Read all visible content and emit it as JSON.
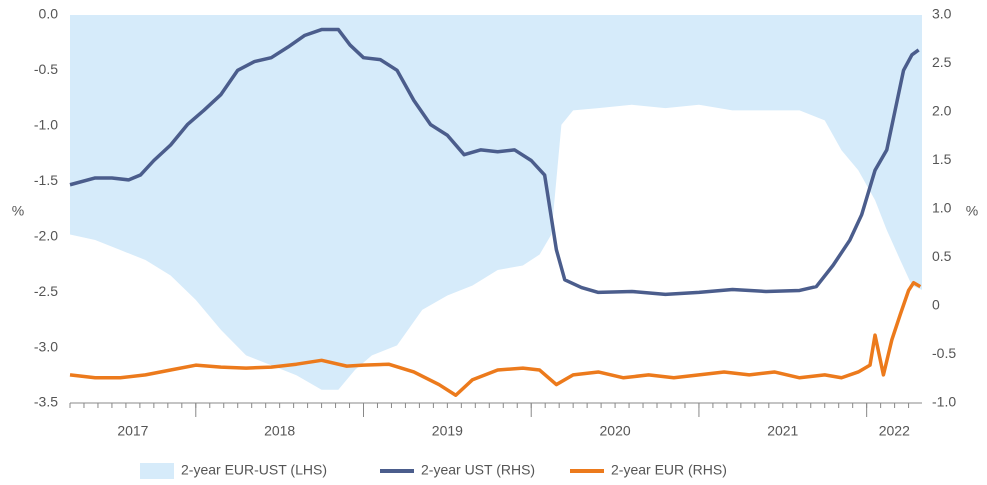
{
  "chart_data": {
    "type": "line",
    "y_label": "%",
    "y2_label": "%",
    "xlim": [
      2017.25,
      2022.33
    ],
    "xticks": [
      2018,
      2019,
      2020,
      2021,
      2022
    ],
    "x_labels": [
      "2017",
      "2018",
      "2019",
      "2020",
      "2021",
      "2022"
    ],
    "ylim": [
      -3.5,
      0
    ],
    "yticks": [
      {
        "value": 0,
        "label": "0.0"
      },
      {
        "value": -0.5,
        "label": "-0.5"
      },
      {
        "value": -1,
        "label": "-1.0"
      },
      {
        "value": -1.5,
        "label": "-1.5"
      },
      {
        "value": -2,
        "label": "-2.0"
      },
      {
        "value": -2.5,
        "label": "-2.5"
      },
      {
        "value": -3,
        "label": "-3.0"
      },
      {
        "value": -3.5,
        "label": "-3.5"
      }
    ],
    "y2lim": [
      -1,
      3
    ],
    "y2ticks": [
      {
        "value": 3,
        "label": "3.0"
      },
      2.5,
      {
        "value": 2,
        "label": "2.0"
      },
      1.5,
      {
        "value": 1,
        "label": "1.0"
      },
      0.5,
      0,
      -0.5,
      {
        "value": -1,
        "label": "-1.0"
      }
    ],
    "series": [
      {
        "name": "2-year EUR-UST (LHS)",
        "type": "area",
        "color": "#d6ebfa",
        "x": [
          2017.25,
          2017.4,
          2017.55,
          2017.7,
          2017.85,
          2018.0,
          2018.15,
          2018.3,
          2018.45,
          2018.6,
          2018.75,
          2018.85,
          2018.95,
          2019.05,
          2019.2,
          2019.35,
          2019.5,
          2019.65,
          2019.8,
          2019.95,
          2020.05,
          2020.12,
          2020.18,
          2020.25,
          2020.4,
          2020.6,
          2020.8,
          2021.0,
          2021.2,
          2021.4,
          2021.6,
          2021.75,
          2021.85,
          2021.95,
          2022.05,
          2022.12,
          2022.2,
          2022.27,
          2022.33
        ],
        "values": [
          -1.98,
          -2.03,
          -2.12,
          -2.21,
          -2.35,
          -2.57,
          -2.84,
          -3.07,
          -3.16,
          -3.25,
          -3.38,
          -3.38,
          -3.2,
          -3.07,
          -2.98,
          -2.66,
          -2.53,
          -2.44,
          -2.3,
          -2.26,
          -2.16,
          -1.98,
          -0.99,
          -0.86,
          -0.84,
          -0.81,
          -0.84,
          -0.81,
          -0.86,
          -0.86,
          -0.86,
          -0.95,
          -1.22,
          -1.4,
          -1.67,
          -1.94,
          -2.21,
          -2.44,
          -2.48
        ]
      },
      {
        "name": "2-year UST (RHS)",
        "type": "line",
        "axis": "y2",
        "color": "#4b5d8c",
        "x": [
          2017.25,
          2017.4,
          2017.5,
          2017.6,
          2017.67,
          2017.75,
          2017.85,
          2017.95,
          2018.05,
          2018.15,
          2018.25,
          2018.35,
          2018.45,
          2018.55,
          2018.65,
          2018.75,
          2018.85,
          2018.92,
          2019.0,
          2019.1,
          2019.2,
          2019.3,
          2019.4,
          2019.5,
          2019.6,
          2019.7,
          2019.8,
          2019.9,
          2020.0,
          2020.08,
          2020.15,
          2020.2,
          2020.3,
          2020.4,
          2020.6,
          2020.8,
          2021.0,
          2021.2,
          2021.4,
          2021.6,
          2021.7,
          2021.8,
          2021.9,
          2021.97,
          2022.05,
          2022.12,
          2022.17,
          2022.22,
          2022.27,
          2022.31
        ],
        "values": [
          1.25,
          1.32,
          1.32,
          1.3,
          1.35,
          1.5,
          1.66,
          1.87,
          2.02,
          2.18,
          2.43,
          2.52,
          2.56,
          2.67,
          2.79,
          2.85,
          2.85,
          2.69,
          2.56,
          2.54,
          2.43,
          2.12,
          1.87,
          1.76,
          1.56,
          1.61,
          1.59,
          1.61,
          1.5,
          1.35,
          0.58,
          0.27,
          0.19,
          0.14,
          0.15,
          0.12,
          0.14,
          0.17,
          0.15,
          0.16,
          0.2,
          0.42,
          0.68,
          0.94,
          1.4,
          1.61,
          2.02,
          2.43,
          2.59,
          2.64
        ]
      },
      {
        "name": "2-year EUR (RHS)",
        "type": "line",
        "axis": "y2",
        "color": "#ec7a1c",
        "x": [
          2017.25,
          2017.4,
          2017.55,
          2017.7,
          2017.85,
          2018.0,
          2018.15,
          2018.3,
          2018.45,
          2018.6,
          2018.75,
          2018.9,
          2019.0,
          2019.15,
          2019.3,
          2019.45,
          2019.55,
          2019.65,
          2019.8,
          2019.95,
          2020.05,
          2020.15,
          2020.25,
          2020.4,
          2020.55,
          2020.7,
          2020.85,
          2021.0,
          2021.15,
          2021.3,
          2021.45,
          2021.6,
          2021.75,
          2021.85,
          2021.95,
          2022.02,
          2022.05,
          2022.1,
          2022.15,
          2022.2,
          2022.25,
          2022.28,
          2022.32
        ],
        "values": [
          -0.71,
          -0.74,
          -0.74,
          -0.71,
          -0.66,
          -0.61,
          -0.63,
          -0.64,
          -0.63,
          -0.6,
          -0.56,
          -0.62,
          -0.61,
          -0.6,
          -0.68,
          -0.81,
          -0.92,
          -0.76,
          -0.66,
          -0.64,
          -0.66,
          -0.81,
          -0.71,
          -0.68,
          -0.74,
          -0.71,
          -0.74,
          -0.71,
          -0.68,
          -0.71,
          -0.68,
          -0.74,
          -0.71,
          -0.74,
          -0.68,
          -0.61,
          -0.3,
          -0.71,
          -0.35,
          -0.09,
          0.16,
          0.24,
          0.2
        ]
      }
    ],
    "legend": "bottom"
  }
}
